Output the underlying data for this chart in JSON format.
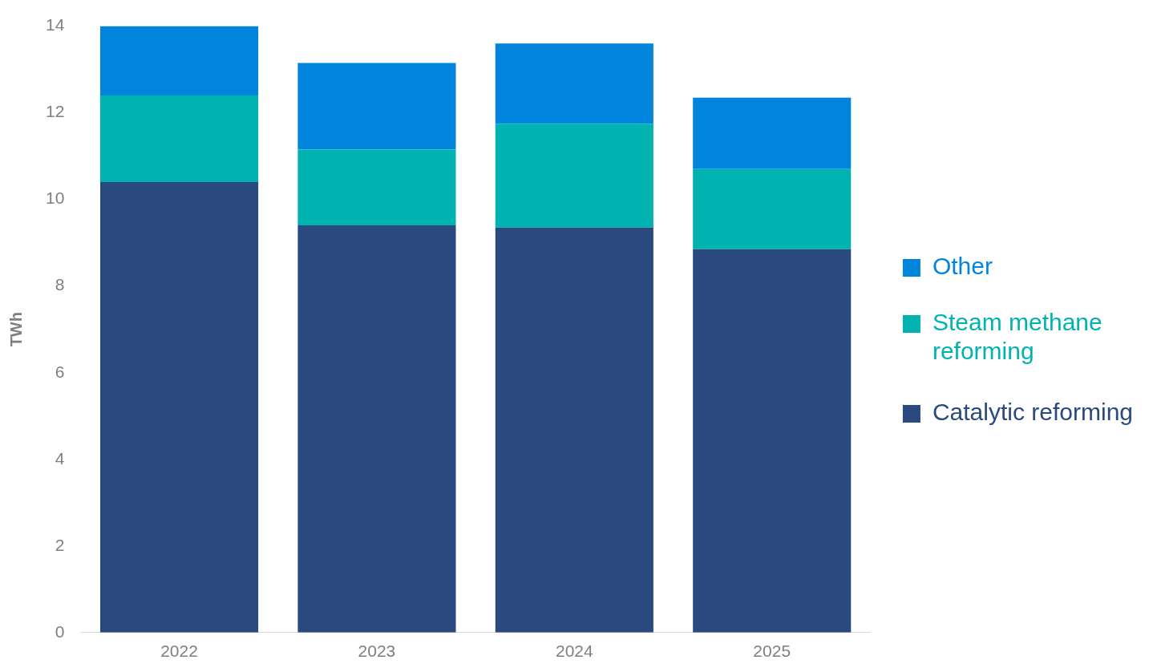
{
  "chart_data": {
    "type": "bar",
    "stacked": true,
    "ylabel": "TWh",
    "categories": [
      "2022",
      "2023",
      "2024",
      "2025"
    ],
    "series": [
      {
        "name": "Catalytic reforming",
        "color": "#29497f",
        "values": [
          10.4,
          9.4,
          9.35,
          8.85
        ]
      },
      {
        "name": "Steam methane reforming",
        "color": "#00b3b0",
        "values": [
          2.0,
          1.75,
          2.4,
          1.85
        ]
      },
      {
        "name": "Other",
        "color": "#0084dc",
        "values": [
          1.6,
          2.0,
          1.85,
          1.65
        ]
      }
    ],
    "ylim": [
      0,
      14
    ],
    "yticks": [
      0,
      2,
      4,
      6,
      8,
      10,
      12,
      14
    ],
    "grid": false,
    "legend": "right"
  }
}
